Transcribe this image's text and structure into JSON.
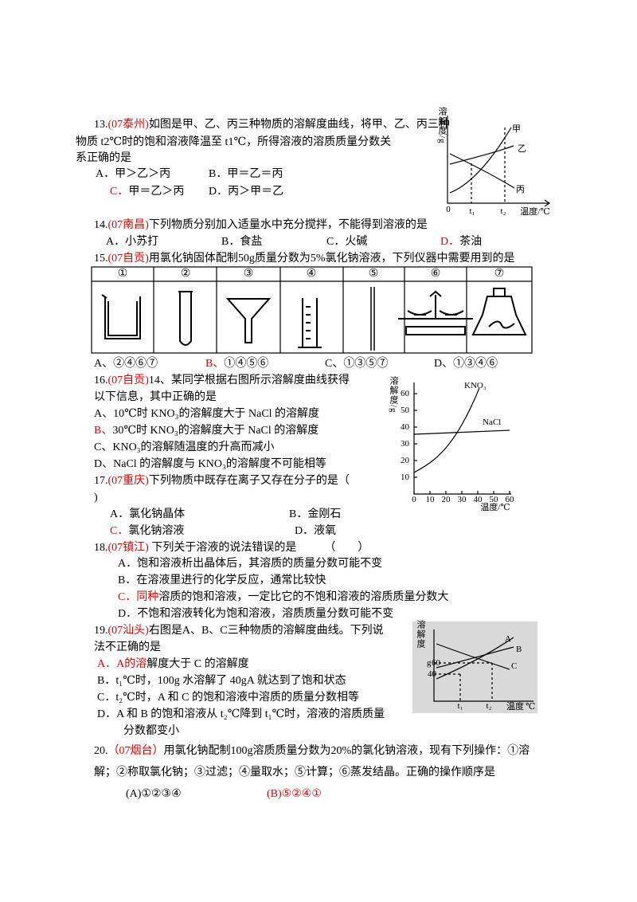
{
  "questions": [
    {
      "number": "13.",
      "source": "(07泰州)",
      "stem": [
        "如图是甲、乙、丙三种物质的溶解度曲线，将甲、乙、丙三种",
        "物质 t2℃时的饱和溶液降温至 t1℃，所得溶液的溶质质量分数关",
        "系正确的是"
      ],
      "options": [
        [
          "A．",
          "甲＞乙＞丙"
        ],
        [
          "B．",
          "甲＝乙＝丙"
        ],
        [
          "C．",
          "甲＝乙＞丙"
        ],
        [
          "D．",
          "丙＞甲＝乙"
        ]
      ],
      "figure": {
        "y_title": "溶解度/g",
        "curve_labels": [
          "甲",
          "乙",
          "丙"
        ],
        "x_labels": [
          "0",
          "t₁",
          "t₂"
        ],
        "x_title": "温度/℃"
      }
    },
    {
      "number": "14.",
      "source": "(07南昌)",
      "stem": [
        "下列物质分别加入适量水中充分搅拌，不能得到溶液的是"
      ],
      "options": [
        [
          "A．",
          "小苏打"
        ],
        [
          "B．",
          "食盐"
        ],
        [
          "C．",
          "火碱"
        ],
        [
          "D．",
          "茶油"
        ]
      ]
    },
    {
      "number": "15.",
      "source": "(07自贡)",
      "stem": [
        "用氯化钠固体配制50g质量分数为5%氯化钠溶液，下列仪器中需要用到的是"
      ],
      "table": {
        "headers": [
          "①",
          "②",
          "③",
          "④",
          "⑤",
          "⑥",
          "⑦"
        ]
      },
      "options": [
        [
          "A、",
          "②④⑥⑦"
        ],
        [
          "B、",
          "①④⑤⑥"
        ],
        [
          "C、",
          "①③⑤⑦"
        ],
        [
          "D、",
          "①③④⑥"
        ]
      ]
    },
    {
      "number": "16.",
      "source": "(07自贡)",
      "stem": [
        "14、某同学根据右图所示溶解度曲线获得",
        "以下信息，其中正确的是"
      ],
      "options": [
        [
          "A、",
          "10℃时 KNO₃的溶解度大于 NaCl 的溶解度"
        ],
        [
          "B、",
          "30℃时 KNO₃的溶解度大于 NaCl 的溶解度"
        ],
        [
          "C、",
          "KNO₃的溶解随温度的升高而减小"
        ],
        [
          "D、",
          "NaCl 的溶解度与 KNO₃的溶解度不可能相等"
        ]
      ],
      "figure": {
        "y_title": "溶解度/g",
        "x_title": "温度/℃",
        "yticks": [
          10,
          20,
          30,
          40,
          50,
          60
        ],
        "xticks": [
          0,
          10,
          20,
          30,
          40,
          50,
          60
        ],
        "series_labels": [
          "KNO₃",
          "NaCl"
        ]
      }
    },
    {
      "number": "17.",
      "source": "(07重庆)",
      "stem": [
        "下列物质中既存在离子又存在分子的是（",
        ")"
      ],
      "options": [
        [
          "A．",
          "氯化钠晶体"
        ],
        [
          "B．",
          "金刚石"
        ],
        [
          "C．",
          "氯化钠溶液"
        ],
        [
          "D．",
          "液氧"
        ]
      ]
    },
    {
      "number": "18.",
      "source": "(07镇江)",
      "stem": [
        " 下列关于溶液的说法错误的是　　　（　　）"
      ],
      "options": [
        [
          "A．",
          "饱和溶液析出晶体后，其溶质的质量分数可能不变"
        ],
        [
          "B．",
          "在溶液里进行的化学反应，通常比较快"
        ],
        [
          "C．",
          "同种",
          "溶质的饱和溶液，一定比它的不饱和溶液的溶质质量分数大"
        ],
        [
          "D．",
          "不饱和溶液转化为饱和溶液，溶质质量分数可能不变"
        ]
      ]
    },
    {
      "number": "19.",
      "source": "(07汕头)",
      "stem": [
        "右图是A、B、C三种物质的溶解度曲线。下列说",
        "法不正确的是"
      ],
      "options": [
        [
          "A．",
          "A的溶",
          "解度大于 C 的溶解度"
        ],
        [
          "B．",
          "t₁℃时，100g 水溶解了 40gA 就达到了饱和状态"
        ],
        [
          "C．",
          "t₂℃时，A 和 C 的饱和溶液中溶质的质量分数相等"
        ],
        [
          "D．",
          "A 和 B 的饱和溶液从 t₂℃降到 t₁℃时，溶液的溶质质量",
          "分数都变小"
        ]
      ],
      "figure": {
        "y_title": "溶解度",
        "y_unit": "g",
        "yticks": [
          60,
          40
        ],
        "curve_labels": [
          "A",
          "B",
          "C"
        ],
        "x_labels": [
          "t₁",
          "t₂"
        ],
        "x_title": "温度",
        "x_unit": "℃"
      }
    },
    {
      "number": "20.",
      "source": "（07烟台）",
      "stem": [
        "用氯化钠配制100g溶质质量分数为20%的氯化钠溶液，现有下列操作：①溶",
        "解；②称取氯化钠；③过滤；④量取水；⑤计算；⑥蒸发结晶。正确的操作顺序是"
      ],
      "options": [
        [
          "(A)①②③④"
        ],
        [
          "(B)⑤②④①"
        ]
      ]
    }
  ]
}
